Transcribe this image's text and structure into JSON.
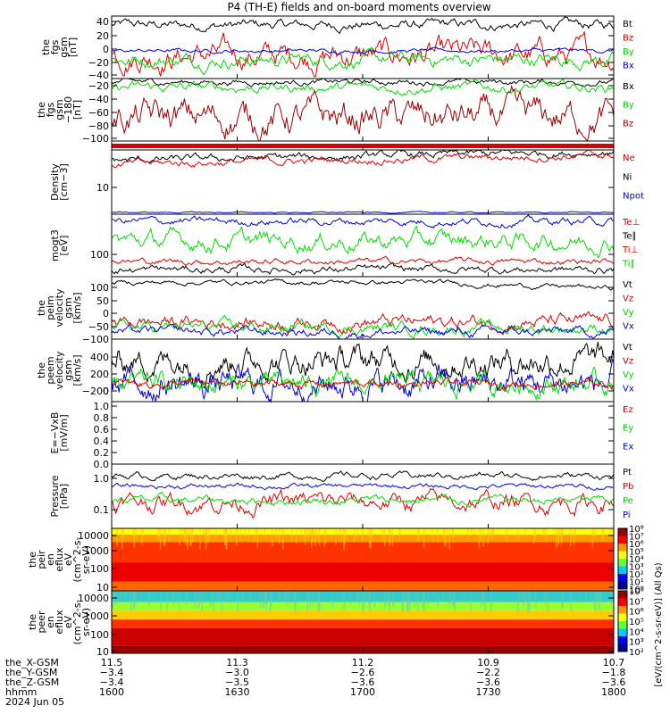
{
  "title": "P4 (TH-E) fields and on-board moments overview",
  "panels": [
    {
      "ylabel_lines": [
        "the",
        "fgs",
        "gsm",
        "[nT]"
      ],
      "yticks": [
        "40",
        "20",
        "0",
        "−20",
        "−40"
      ],
      "legend": [
        {
          "text": "Bt",
          "color": "#000000"
        },
        {
          "text": "Bz",
          "color": "#cc0000"
        },
        {
          "text": "By",
          "color": "#00cc00"
        },
        {
          "text": "Bx",
          "color": "#0000cc"
        }
      ]
    },
    {
      "ylabel_lines": [
        "the",
        "fgs",
        "gsm",
        "−180",
        "[nT]"
      ],
      "yticks": [
        "−20",
        "−40",
        "−60",
        "−80",
        "−100"
      ],
      "legend": [
        {
          "text": "Bx",
          "color": "#000000"
        },
        {
          "text": "By",
          "color": "#00cc00"
        },
        {
          "text": "Bz",
          "color": "#990000"
        }
      ]
    },
    {
      "ylabel_lines": [],
      "yticks": [],
      "legend": []
    },
    {
      "ylabel_lines": [
        "Density",
        "[cm−3]"
      ],
      "yticks": [
        "10"
      ],
      "legend": [
        {
          "text": "Ne",
          "color": "#cc0000"
        },
        {
          "text": "Ni",
          "color": "#000000"
        },
        {
          "text": "Npot",
          "color": "#0000cc"
        }
      ]
    },
    {
      "ylabel_lines": [
        "mogt3",
        "[eV]"
      ],
      "yticks": [
        "100"
      ],
      "legend": [
        {
          "text": "Te⊥",
          "color": "#cc0000"
        },
        {
          "text": "Te∥",
          "color": "#000000"
        },
        {
          "text": "Ti⊥",
          "color": "#cc0000"
        },
        {
          "text": "Ti∥",
          "color": "#00cc00"
        }
      ]
    },
    {
      "ylabel_lines": [
        "the",
        "peim",
        "velocity",
        "gsm",
        "[km/s]"
      ],
      "yticks": [
        "100",
        "50",
        "0",
        "−50",
        "−100"
      ],
      "legend": [
        {
          "text": "Vt",
          "color": "#000000"
        },
        {
          "text": "Vz",
          "color": "#cc0000"
        },
        {
          "text": "Vy",
          "color": "#00cc00"
        },
        {
          "text": "Vx",
          "color": "#0000cc"
        }
      ]
    },
    {
      "ylabel_lines": [
        "the",
        "peem",
        "velocity",
        "gsm",
        "[km/s]"
      ],
      "yticks": [
        "400",
        "200",
        "0",
        "−200"
      ],
      "legend": [
        {
          "text": "Vt",
          "color": "#000000"
        },
        {
          "text": "Vz",
          "color": "#cc0000"
        },
        {
          "text": "Vy",
          "color": "#00cc00"
        },
        {
          "text": "Vx",
          "color": "#0000cc"
        }
      ]
    },
    {
      "ylabel_lines": [
        "E=−VxB",
        "[mV/m]"
      ],
      "yticks": [
        "1.0",
        "0.8",
        "0.6",
        "0.4",
        "0.2",
        "0.0"
      ],
      "legend": [
        {
          "text": "Ez",
          "color": "#cc0000"
        },
        {
          "text": "Ey",
          "color": "#00cc00"
        },
        {
          "text": "Ex",
          "color": "#0000cc"
        }
      ]
    },
    {
      "ylabel_lines": [
        "Pressure",
        "[nPa]"
      ],
      "yticks": [
        "1.0",
        "0.1"
      ],
      "legend": [
        {
          "text": "Pt",
          "color": "#000000"
        },
        {
          "text": "Pb",
          "color": "#cc0000"
        },
        {
          "text": "Pe",
          "color": "#00cc00"
        },
        {
          "text": "Pi",
          "color": "#0000cc"
        }
      ]
    },
    {
      "ylabel_lines": [
        "the",
        "peir",
        "en",
        "eflux",
        "eV",
        "(cm^2-s-",
        "sr-eV)"
      ],
      "yticks": [
        "10000",
        "1000",
        "100",
        "10"
      ],
      "legend": []
    },
    {
      "ylabel_lines": [
        "the",
        "peer",
        "en",
        "eflux",
        "eV",
        "(cm^2-s-",
        "sr-eV)"
      ],
      "yticks": [
        "10000",
        "1000",
        "100",
        "10"
      ],
      "legend": []
    }
  ],
  "colorbar1": {
    "ticks": [
      "10⁸",
      "10⁷",
      "10⁶",
      "10⁵",
      "10⁴",
      "10³",
      "10²",
      "10¹",
      "10⁰"
    ],
    "label": "[eV/(cm^2-s-sr-eV)] (All Qs)"
  },
  "colorbar2": {
    "ticks": [
      "10⁸",
      "10⁷",
      "10⁶",
      "10⁵",
      "10⁴",
      "10³",
      "10²"
    ],
    "label": "[eV/(cm^2-s-sr-eV)] (All Qs)"
  },
  "xaxis": {
    "row_labels": [
      "the_X-GSM",
      "the_Y-GSM",
      "the_Z-GSM",
      "hhmm",
      "2024 Jun 05"
    ],
    "columns": [
      [
        "11.5",
        "−3.4",
        "−3.4",
        "1600"
      ],
      [
        "11.3",
        "−3.0",
        "−3.5",
        "1630"
      ],
      [
        "11.2",
        "−2.6",
        "−3.6",
        "1700"
      ],
      [
        "10.9",
        "−2.2",
        "−3.6",
        "1730"
      ],
      [
        "10.7",
        "−1.8",
        "−3.6",
        "1800"
      ]
    ]
  },
  "colors": {
    "black": "#000000",
    "red": "#dd0000",
    "green": "#00dd00",
    "blue": "#0000dd",
    "darkred": "#990000"
  },
  "chart_data": {
    "type": "line",
    "title": "P4 (TH-E) fields and on-board moments overview",
    "x_range_hhmm": [
      "1600",
      "1800"
    ],
    "x": [
      "1600",
      "1630",
      "1700",
      "1730",
      "1800"
    ],
    "series": [
      {
        "name": "Bt",
        "values": [
          30,
          32,
          31,
          32,
          30
        ]
      },
      {
        "name": "Bz",
        "values": [
          -15,
          -14,
          -17,
          -16,
          -16
        ]
      },
      {
        "name": "By",
        "values": [
          -18,
          -19,
          -17,
          -16,
          -17
        ]
      },
      {
        "name": "Bx",
        "values": [
          -6,
          -5,
          -6,
          -5,
          -5
        ]
      },
      {
        "name": "Ne",
        "values": [
          16,
          17,
          18,
          18,
          19
        ]
      },
      {
        "name": "Vt",
        "values": [
          100,
          95,
          80,
          50,
          45
        ]
      },
      {
        "name": "Pt",
        "values": [
          0.9,
          0.95,
          0.95,
          0.9,
          0.95
        ]
      }
    ]
  }
}
